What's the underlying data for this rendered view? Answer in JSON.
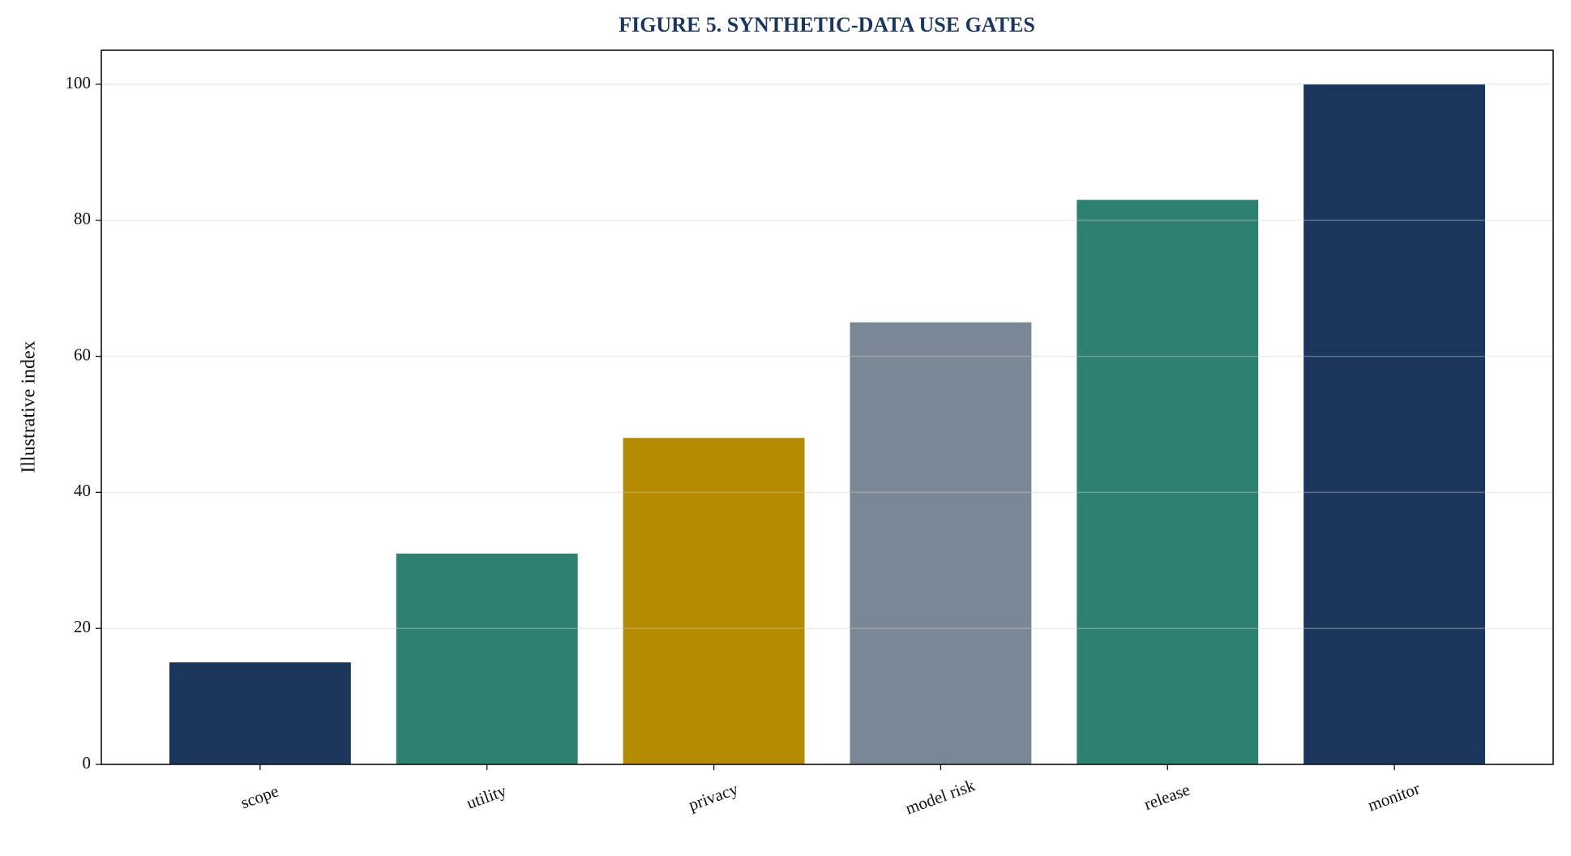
{
  "chart_data": {
    "type": "bar",
    "title": "FIGURE 5. SYNTHETIC-DATA USE GATES",
    "y_label": "Illustrative index",
    "categories": [
      "scope",
      "utility",
      "privacy",
      "model risk",
      "release",
      "monitor"
    ],
    "values": [
      15,
      31,
      48,
      65,
      83,
      100
    ],
    "colors": [
      "#1b365d",
      "#2e8070",
      "#b38a00",
      "#7a8795",
      "#2e8070",
      "#1b365d"
    ],
    "ylim": [
      0,
      105
    ],
    "yticks": [
      0,
      20,
      40,
      60,
      80,
      100
    ],
    "grid": true
  }
}
